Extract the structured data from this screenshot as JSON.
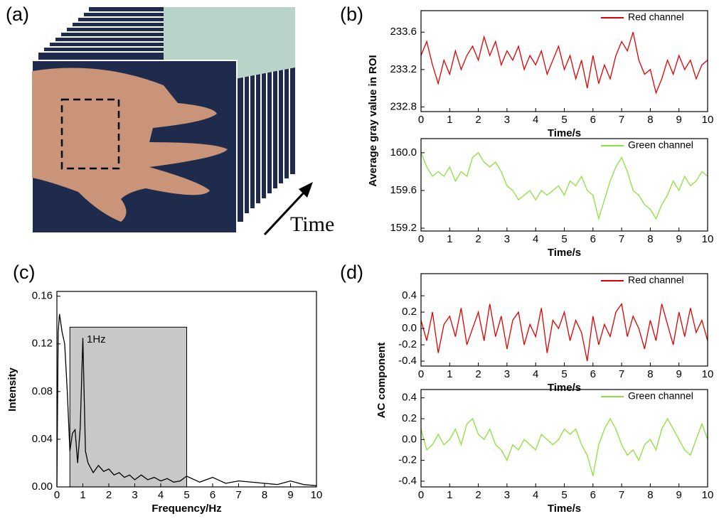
{
  "panel_a": {
    "label": "(a)",
    "annotation": "Time"
  },
  "chart_data": [
    {
      "type": "line",
      "panel": "(b)",
      "ylabel": "Average gray value in ROI",
      "xlabel": "Time/s",
      "x": [
        0,
        0.2,
        0.4,
        0.6,
        0.8,
        1,
        1.2,
        1.4,
        1.6,
        1.8,
        2,
        2.2,
        2.4,
        2.6,
        2.8,
        3,
        3.2,
        3.4,
        3.6,
        3.8,
        4,
        4.2,
        4.4,
        4.6,
        4.8,
        5,
        5.2,
        5.4,
        5.6,
        5.8,
        6,
        6.2,
        6.4,
        6.6,
        6.8,
        7,
        7.2,
        7.4,
        7.6,
        7.8,
        8,
        8.2,
        8.4,
        8.6,
        8.8,
        9,
        9.2,
        9.4,
        9.6,
        9.8,
        10
      ],
      "series": [
        {
          "name": "Red channel",
          "color": "#e00000",
          "values": [
            233.35,
            233.5,
            233.25,
            233.05,
            233.3,
            233.15,
            233.4,
            233.2,
            233.35,
            233.45,
            233.3,
            233.55,
            233.35,
            233.5,
            233.25,
            233.4,
            233.3,
            233.45,
            233.2,
            233.35,
            233.25,
            233.4,
            233.15,
            233.3,
            233.45,
            233.2,
            233.35,
            233.1,
            233.3,
            233.0,
            233.35,
            233.05,
            233.25,
            233.1,
            233.35,
            233.5,
            233.4,
            233.6,
            233.3,
            233.15,
            233.2,
            232.95,
            233.1,
            233.3,
            233.15,
            233.35,
            233.2,
            233.3,
            233.1,
            233.25,
            233.3
          ]
        }
      ],
      "xlim": [
        0,
        10
      ],
      "xticks": [
        0,
        1,
        2,
        3,
        4,
        5,
        6,
        7,
        8,
        9,
        10
      ],
      "ylim": [
        232.75,
        233.83
      ],
      "yticks": [
        232.8,
        233.2,
        233.6
      ]
    },
    {
      "type": "line",
      "xlabel": "Time/s",
      "x": [
        0,
        0.2,
        0.4,
        0.6,
        0.8,
        1,
        1.2,
        1.4,
        1.6,
        1.8,
        2,
        2.2,
        2.4,
        2.6,
        2.8,
        3,
        3.2,
        3.4,
        3.6,
        3.8,
        4,
        4.2,
        4.4,
        4.6,
        4.8,
        5,
        5.2,
        5.4,
        5.6,
        5.8,
        6,
        6.2,
        6.4,
        6.6,
        6.8,
        7,
        7.2,
        7.4,
        7.6,
        7.8,
        8,
        8.2,
        8.4,
        8.6,
        8.8,
        9,
        9.2,
        9.4,
        9.6,
        9.8,
        10
      ],
      "series": [
        {
          "name": "Green channel",
          "color": "#8ee03a",
          "values": [
            160.0,
            159.85,
            159.75,
            159.8,
            159.75,
            159.85,
            159.7,
            159.8,
            159.75,
            159.95,
            160.0,
            159.9,
            159.85,
            159.9,
            159.8,
            159.65,
            159.6,
            159.5,
            159.55,
            159.6,
            159.5,
            159.6,
            159.55,
            159.6,
            159.65,
            159.55,
            159.7,
            159.65,
            159.75,
            159.6,
            159.55,
            159.3,
            159.5,
            159.7,
            159.85,
            159.95,
            159.8,
            159.6,
            159.55,
            159.45,
            159.4,
            159.3,
            159.45,
            159.55,
            159.7,
            159.6,
            159.75,
            159.65,
            159.7,
            159.8,
            159.75
          ]
        }
      ],
      "xlim": [
        0,
        10
      ],
      "xticks": [
        0,
        1,
        2,
        3,
        4,
        5,
        6,
        7,
        8,
        9,
        10
      ],
      "ylim": [
        159.17,
        160.15
      ],
      "yticks": [
        159.2,
        159.6,
        {
          "value": 160,
          "label": "160.0"
        }
      ]
    },
    {
      "type": "line",
      "panel": "(c)",
      "ylabel": "Intensity",
      "xlabel": "Frequency/Hz",
      "annotation": "1Hz",
      "highlight_x": [
        0.5,
        5
      ],
      "highlight_top": 0.134,
      "x": [
        0,
        0.05,
        0.1,
        0.2,
        0.3,
        0.4,
        0.5,
        0.6,
        0.7,
        0.8,
        0.9,
        1.0,
        1.1,
        1.2,
        1.4,
        1.6,
        1.8,
        2.0,
        2.2,
        2.4,
        2.6,
        2.8,
        3.0,
        3.25,
        3.5,
        3.75,
        4.0,
        4.25,
        4.5,
        4.75,
        5.0,
        5.5,
        6.0,
        6.5,
        7.0,
        7.5,
        8.0,
        8.5,
        9.0,
        9.5,
        10.0
      ],
      "series": [
        {
          "name": null,
          "color": "#000000",
          "values": [
            0,
            0.13,
            0.145,
            0.13,
            0.12,
            0.08,
            0.03,
            0.045,
            0.048,
            0.02,
            0.05,
            0.125,
            0.03,
            0.02,
            0.012,
            0.018,
            0.013,
            0.015,
            0.01,
            0.012,
            0.008,
            0.01,
            0.006,
            0.01,
            0.006,
            0.008,
            0.005,
            0.007,
            0.004,
            0.005,
            0.009,
            0.004,
            0.008,
            0.003,
            0.005,
            0.004,
            0.003,
            0.002,
            0.005,
            0.002,
            0.001
          ]
        }
      ],
      "xlim": [
        0,
        10
      ],
      "xticks": [
        0,
        1,
        2,
        3,
        4,
        5,
        6,
        7,
        8,
        9,
        10
      ],
      "ylim": [
        0,
        0.164
      ],
      "yticks": [
        {
          "value": 0,
          "label": "0.00"
        },
        0.04,
        0.08,
        0.12,
        0.16
      ]
    },
    {
      "type": "line",
      "panel": "(d)",
      "ylabel": "AC component",
      "xlabel": "Time/s",
      "x": [
        0,
        0.2,
        0.4,
        0.6,
        0.8,
        1,
        1.2,
        1.4,
        1.6,
        1.8,
        2,
        2.2,
        2.4,
        2.6,
        2.8,
        3,
        3.2,
        3.4,
        3.6,
        3.8,
        4,
        4.2,
        4.4,
        4.6,
        4.8,
        5,
        5.2,
        5.4,
        5.6,
        5.8,
        6,
        6.2,
        6.4,
        6.6,
        6.8,
        7,
        7.2,
        7.4,
        7.6,
        7.8,
        8,
        8.2,
        8.4,
        8.6,
        8.8,
        9,
        9.2,
        9.4,
        9.6,
        9.8,
        10
      ],
      "series": [
        {
          "name": "Red channel",
          "color": "#e00000",
          "values": [
            0.1,
            -0.15,
            0.2,
            -0.3,
            0.05,
            0.15,
            -0.1,
            0.25,
            -0.2,
            0.0,
            0.2,
            -0.15,
            0.3,
            -0.1,
            0.15,
            -0.25,
            0.1,
            0.2,
            -0.2,
            0.05,
            -0.1,
            0.25,
            -0.3,
            0.1,
            0.0,
            0.2,
            -0.15,
            0.1,
            -0.05,
            -0.4,
            0.15,
            -0.2,
            0.05,
            -0.1,
            0.2,
            0.3,
            -0.1,
            0.15,
            0.0,
            -0.25,
            0.1,
            -0.15,
            0.3,
            0.05,
            -0.2,
            0.2,
            -0.1,
            0.25,
            -0.05,
            0.1,
            -0.15
          ]
        }
      ],
      "xlim": [
        0,
        10
      ],
      "xticks": [
        0,
        1,
        2,
        3,
        4,
        5,
        6,
        7,
        8,
        9,
        10
      ],
      "ylim": [
        -0.46,
        0.67
      ],
      "yticks": [
        -0.4,
        -0.2,
        {
          "value": 0,
          "label": "0.0"
        },
        0.2,
        0.4
      ]
    },
    {
      "type": "line",
      "xlabel": "Time/s",
      "x": [
        0,
        0.2,
        0.4,
        0.6,
        0.8,
        1,
        1.2,
        1.4,
        1.6,
        1.8,
        2,
        2.2,
        2.4,
        2.6,
        2.8,
        3,
        3.2,
        3.4,
        3.6,
        3.8,
        4,
        4.2,
        4.4,
        4.6,
        4.8,
        5,
        5.2,
        5.4,
        5.6,
        5.8,
        6,
        6.2,
        6.4,
        6.6,
        6.8,
        7,
        7.2,
        7.4,
        7.6,
        7.8,
        8,
        8.2,
        8.4,
        8.6,
        8.8,
        9,
        9.2,
        9.4,
        9.6,
        9.8,
        10
      ],
      "series": [
        {
          "name": "Green channel",
          "color": "#8ee03a",
          "values": [
            0.1,
            -0.1,
            -0.05,
            0.05,
            -0.05,
            0.0,
            0.1,
            -0.05,
            0.15,
            0.2,
            0.05,
            0.0,
            0.1,
            -0.05,
            -0.1,
            -0.2,
            -0.05,
            -0.1,
            0.0,
            -0.05,
            -0.1,
            0.05,
            0.0,
            -0.05,
            0.0,
            0.1,
            0.05,
            0.1,
            -0.05,
            -0.15,
            -0.35,
            -0.05,
            0.1,
            0.2,
            0.1,
            -0.05,
            -0.15,
            -0.1,
            -0.2,
            -0.05,
            0.0,
            -0.1,
            0.1,
            0.2,
            0.1,
            0.0,
            -0.1,
            -0.15,
            0.0,
            0.15,
            0.0
          ]
        }
      ],
      "xlim": [
        0,
        10
      ],
      "xticks": [
        0,
        1,
        2,
        3,
        4,
        5,
        6,
        7,
        8,
        9,
        10
      ],
      "ylim": [
        -0.455,
        0.48
      ],
      "yticks": [
        -0.4,
        -0.2,
        {
          "value": 0,
          "label": "0.0"
        },
        0.2,
        0.4
      ]
    }
  ]
}
